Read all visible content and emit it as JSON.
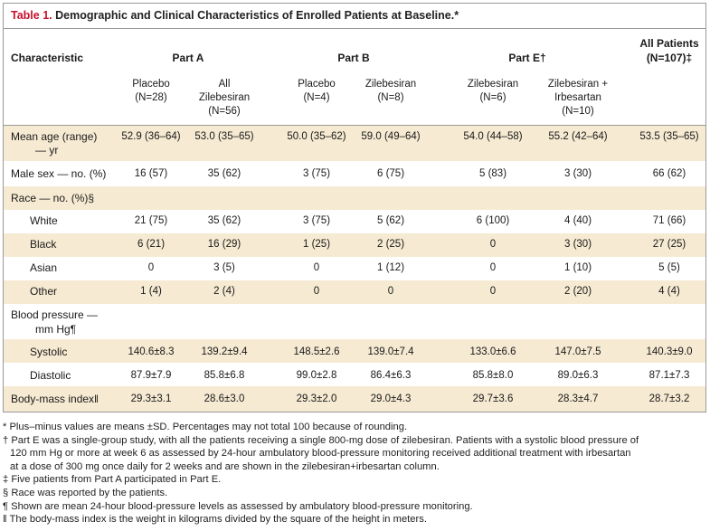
{
  "title": {
    "number": "Table 1.",
    "text": " Demographic and Clinical Characteristics of Enrolled Patients at Baseline.*"
  },
  "header": {
    "characteristic": "Characteristic",
    "part_a": "Part A",
    "part_b": "Part B",
    "part_e": "Part E†",
    "all_patients_line1": "All Patients",
    "all_patients_line2": "(N=107)‡",
    "subcolumns": [
      {
        "line1": "",
        "line2": "Placebo",
        "line3": "(N=28)"
      },
      {
        "line1": "All",
        "line2": "Zilebesiran",
        "line3": "(N=56)"
      },
      {
        "line1": "",
        "line2": "Placebo",
        "line3": "(N=4)"
      },
      {
        "line1": "",
        "line2": "Zilebesiran",
        "line3": "(N=8)"
      },
      {
        "line1": "",
        "line2": "Zilebesiran",
        "line3": "(N=6)"
      },
      {
        "line1": "Zilebesiran +",
        "line2": "Irbesartan",
        "line3": "(N=10)"
      }
    ]
  },
  "rows": {
    "mean_age": {
      "label1": "Mean age (range)",
      "label2": "— yr",
      "values": [
        "52.9 (36–64)",
        "53.0 (35–65)",
        "50.0 (35–62)",
        "59.0 (49–64)",
        "54.0 (44–58)",
        "55.2 (42–64)",
        "53.5 (35–65)"
      ]
    },
    "male_sex": {
      "label": "Male sex — no. (%)",
      "values": [
        "16 (57)",
        "35 (62)",
        "3 (75)",
        "6 (75)",
        "5 (83)",
        "3 (30)",
        "66 (62)"
      ]
    },
    "race": {
      "label": "Race — no. (%)§"
    },
    "white": {
      "label": "White",
      "values": [
        "21 (75)",
        "35 (62)",
        "3 (75)",
        "5 (62)",
        "6 (100)",
        "4 (40)",
        "71 (66)"
      ]
    },
    "black": {
      "label": "Black",
      "values": [
        "6 (21)",
        "16 (29)",
        "1 (25)",
        "2 (25)",
        "0",
        "3 (30)",
        "27 (25)"
      ]
    },
    "asian": {
      "label": "Asian",
      "values": [
        "0",
        "3 (5)",
        "0",
        "1 (12)",
        "0",
        "1 (10)",
        "5 (5)"
      ]
    },
    "other": {
      "label": "Other",
      "values": [
        "1 (4)",
        "2 (4)",
        "0",
        "0",
        "0",
        "2 (20)",
        "4 (4)"
      ]
    },
    "bp": {
      "label1": "Blood pressure —",
      "label2": "mm Hg¶"
    },
    "systolic": {
      "label": "Systolic",
      "values": [
        "140.6±8.3",
        "139.2±9.4",
        "148.5±2.6",
        "139.0±7.4",
        "133.0±6.6",
        "147.0±7.5",
        "140.3±9.0"
      ]
    },
    "diastolic": {
      "label": "Diastolic",
      "values": [
        "87.9±7.9",
        "85.8±6.8",
        "99.0±2.8",
        "86.4±6.3",
        "85.8±8.0",
        "89.0±6.3",
        "87.1±7.3"
      ]
    },
    "bmi": {
      "label": "Body-mass index‖",
      "values": [
        "29.3±3.1",
        "28.6±3.0",
        "29.3±2.0",
        "29.0±4.3",
        "29.7±3.6",
        "28.3±4.7",
        "28.7±3.2"
      ]
    }
  },
  "footnotes": [
    "* Plus–minus values are means ±SD. Percentages may not total 100 because of rounding.",
    "† Part E was a single-group study, with all the patients receiving a single 800-mg dose of zilebesiran. Patients with a systolic blood pressure of",
    "120 mm Hg or more at week 6 as assessed by 24-hour ambulatory blood-pressure monitoring received additional treatment with irbesartan",
    "at a dose of 300 mg once daily for 2 weeks and are shown in the zilebesiran+irbesartan column.",
    "‡ Five patients from Part A participated in Part E.",
    "§ Race was reported by the patients.",
    "¶ Shown are mean 24-hour blood-pressure levels as assessed by ambulatory blood-pressure monitoring.",
    "‖ The body-mass index is the weight in kilograms divided by the square of the height in meters."
  ]
}
